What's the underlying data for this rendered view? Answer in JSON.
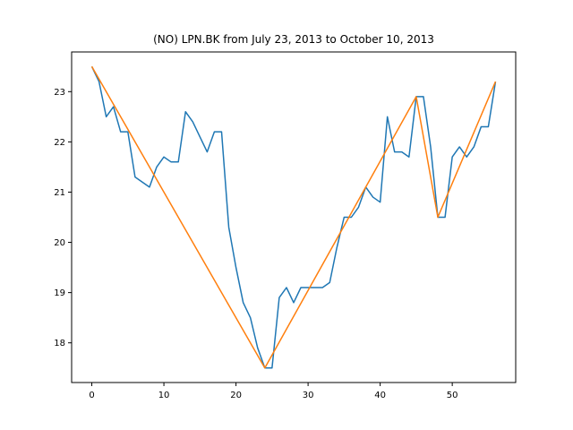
{
  "chart_data": {
    "type": "line",
    "title": "(NO) LPN.BK from July 23, 2013 to October 10, 2013",
    "xlabel": "",
    "ylabel": "",
    "xlim": [
      -2.8,
      58.8
    ],
    "ylim": [
      17.21,
      23.79
    ],
    "grid": false,
    "x_ticks": [
      0,
      10,
      20,
      30,
      40,
      50
    ],
    "y_ticks": [
      18,
      19,
      20,
      21,
      22,
      23
    ],
    "colors": {
      "price": "#1f77b4",
      "trend": "#ff7f0e"
    },
    "series": [
      {
        "values": [
          23.5,
          23.2,
          22.5,
          22.7,
          22.2,
          22.2,
          21.3,
          21.2,
          21.1,
          21.5,
          21.7,
          21.6,
          21.6,
          22.6,
          22.4,
          22.1,
          21.8,
          22.2,
          22.2,
          20.3,
          19.5,
          18.8,
          18.5,
          17.9,
          17.5,
          17.5,
          18.9,
          19.1,
          18.8,
          19.1,
          19.1,
          19.1,
          19.1,
          19.2,
          19.9,
          20.5,
          20.5,
          20.7,
          21.1,
          20.9,
          20.8,
          22.5,
          21.8,
          21.8,
          21.7,
          22.9,
          22.9,
          21.9,
          20.5,
          20.5,
          21.7,
          21.9,
          21.7,
          21.9,
          22.3,
          22.3,
          23.2
        ]
      },
      {
        "x": [
          0,
          24,
          45,
          48,
          56
        ],
        "values": [
          23.5,
          17.5,
          22.9,
          20.5,
          23.2
        ]
      }
    ]
  }
}
